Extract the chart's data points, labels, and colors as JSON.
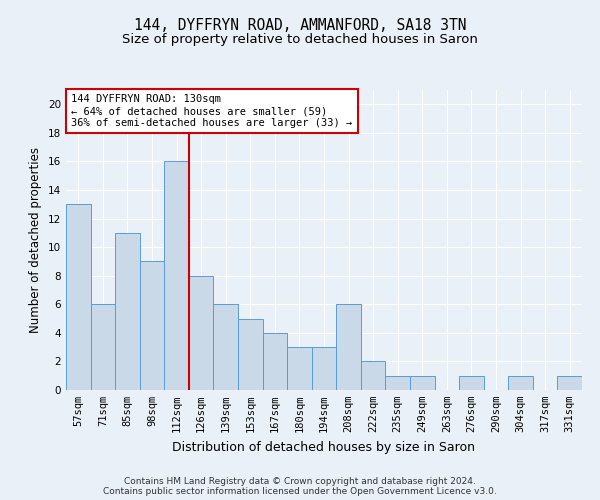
{
  "title1": "144, DYFFRYN ROAD, AMMANFORD, SA18 3TN",
  "title2": "Size of property relative to detached houses in Saron",
  "xlabel": "Distribution of detached houses by size in Saron",
  "ylabel": "Number of detached properties",
  "categories": [
    "57sqm",
    "71sqm",
    "85sqm",
    "98sqm",
    "112sqm",
    "126sqm",
    "139sqm",
    "153sqm",
    "167sqm",
    "180sqm",
    "194sqm",
    "208sqm",
    "222sqm",
    "235sqm",
    "249sqm",
    "263sqm",
    "276sqm",
    "290sqm",
    "304sqm",
    "317sqm",
    "331sqm"
  ],
  "values": [
    13,
    6,
    11,
    9,
    16,
    8,
    6,
    5,
    4,
    3,
    3,
    6,
    2,
    1,
    1,
    0,
    1,
    0,
    1,
    0,
    1
  ],
  "bar_color": "#c9d9e8",
  "bar_edge_color": "#5b9bd5",
  "vline_x_index": 5,
  "vline_color": "#cc0000",
  "annotation_line1": "144 DYFFRYN ROAD: 130sqm",
  "annotation_line2": "← 64% of detached houses are smaller (59)",
  "annotation_line3": "36% of semi-detached houses are larger (33) →",
  "annotation_box_color": "#ffffff",
  "annotation_box_edge_color": "#cc0000",
  "ylim": [
    0,
    21
  ],
  "yticks": [
    0,
    2,
    4,
    6,
    8,
    10,
    12,
    14,
    16,
    18,
    20
  ],
  "footnote1": "Contains HM Land Registry data © Crown copyright and database right 2024.",
  "footnote2": "Contains public sector information licensed under the Open Government Licence v3.0.",
  "background_color": "#eaf0f7",
  "plot_bg_color": "#eaf0f7",
  "title1_fontsize": 10.5,
  "title2_fontsize": 9.5,
  "xlabel_fontsize": 9,
  "ylabel_fontsize": 8.5,
  "tick_fontsize": 7.5,
  "annotation_fontsize": 7.5,
  "footnote_fontsize": 6.5
}
